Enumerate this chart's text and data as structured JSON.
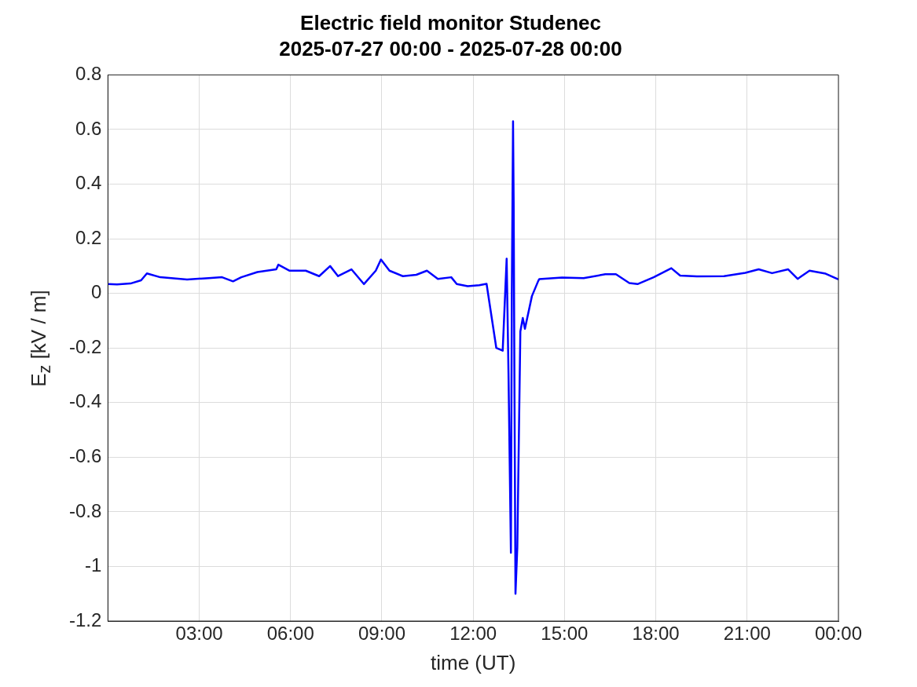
{
  "chart_data": {
    "type": "line",
    "title": "Electric field monitor Studenec",
    "subtitle": "2025-07-27 00:00 - 2025-07-28 00:00",
    "xlabel": "time (UT)",
    "ylabel": "E$_{z}$ [kV / m]",
    "xlim": [
      0,
      24
    ],
    "xticks": [
      {
        "value": 3,
        "label": "03:00"
      },
      {
        "value": 6,
        "label": "06:00"
      },
      {
        "value": 9,
        "label": "09:00"
      },
      {
        "value": 12,
        "label": "12:00"
      },
      {
        "value": 15,
        "label": "15:00"
      },
      {
        "value": 18,
        "label": "18:00"
      },
      {
        "value": 21,
        "label": "21:00"
      },
      {
        "value": 24,
        "label": "00:00"
      }
    ],
    "ylim": [
      -1.2,
      0.8
    ],
    "yticks": [
      -1.2,
      -1,
      -0.8,
      -0.6,
      -0.4,
      -0.2,
      0,
      0.2,
      0.4,
      0.6,
      0.8
    ],
    "grid": true,
    "legend": false,
    "marker": "none",
    "line_style": "solid",
    "series": [
      {
        "color": "#0000ff",
        "x": [
          0,
          0.3,
          0.74,
          1.09,
          1.28,
          1.72,
          2.6,
          3.31,
          3.75,
          4.11,
          4.38,
          4.91,
          5.53,
          5.6,
          5.97,
          6.5,
          6.94,
          7.3,
          7.56,
          8.0,
          8.41,
          8.8,
          8.97,
          9.25,
          9.69,
          10.13,
          10.48,
          10.84,
          11.28,
          11.46,
          11.82,
          12.2,
          12.44,
          12.76,
          12.97,
          13.1,
          13.16,
          13.24,
          13.27,
          13.31,
          13.33,
          13.36,
          13.39,
          13.45,
          13.55,
          13.63,
          13.7,
          13.93,
          14.14,
          14.17,
          14.92,
          15.63,
          16.34,
          16.69,
          17.13,
          17.4,
          17.93,
          18.51,
          18.8,
          19.35,
          20.24,
          20.94,
          21.38,
          21.82,
          22.35,
          22.66,
          23.05,
          23.58,
          24
        ],
        "values": [
          0.034,
          0.033,
          0.036,
          0.048,
          0.073,
          0.059,
          0.051,
          0.056,
          0.059,
          0.044,
          0.059,
          0.078,
          0.088,
          0.105,
          0.083,
          0.083,
          0.063,
          0.1,
          0.063,
          0.088,
          0.034,
          0.083,
          0.124,
          0.083,
          0.063,
          0.068,
          0.083,
          0.053,
          0.059,
          0.034,
          0.026,
          0.03,
          0.035,
          -0.2,
          -0.21,
          0.127,
          -0.29,
          -0.95,
          0,
          0.63,
          0.335,
          -0.43,
          -1.1,
          -0.93,
          -0.14,
          -0.09,
          -0.13,
          -0.01,
          0.046,
          0.052,
          0.058,
          0.056,
          0.07,
          0.07,
          0.038,
          0.034,
          0.059,
          0.092,
          0.065,
          0.062,
          0.063,
          0.075,
          0.088,
          0.074,
          0.088,
          0.053,
          0.083,
          0.072,
          0.051
        ]
      }
    ]
  }
}
